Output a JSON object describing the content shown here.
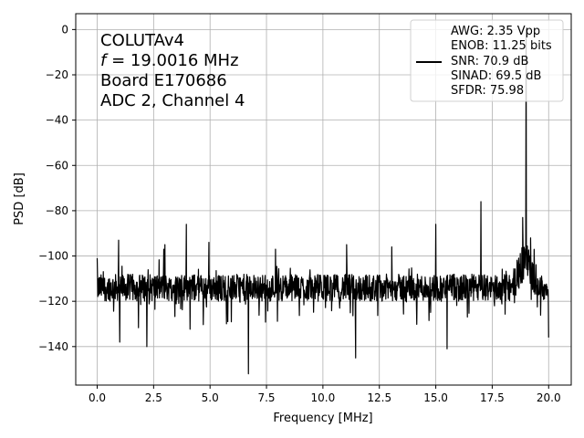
{
  "chart_data": {
    "type": "line",
    "xlabel": "Frequency [MHz]",
    "ylabel": "PSD [dB]",
    "xlim": [
      -0.95,
      21.0
    ],
    "ylim": [
      -157,
      7
    ],
    "xticks": [
      0.0,
      2.5,
      5.0,
      7.5,
      10.0,
      12.5,
      15.0,
      17.5,
      20.0
    ],
    "xtick_labels": [
      "0.0",
      "2.5",
      "5.0",
      "7.5",
      "10.0",
      "12.5",
      "15.0",
      "17.5",
      "20.0"
    ],
    "yticks": [
      0,
      -20,
      -40,
      -60,
      -80,
      -100,
      -120,
      -140
    ],
    "ytick_labels": [
      "0",
      "−20",
      "−40",
      "−60",
      "−80",
      "−100",
      "−120",
      "−140"
    ],
    "grid": true,
    "legend_position": "top-right",
    "annotation_lines": [
      "COLUTAv4",
      "f = 19.0016 MHz",
      "Board E170686",
      "ADC 2, Channel 4"
    ],
    "series": [
      {
        "name": "AWG: 2.35 Vpp\nENOB: 11.25 bits\nSNR: 70.9 dB\nSINAD: 69.5 dB\nSFDR: 75.98",
        "color": "#000000",
        "noise_floor_db": -114,
        "x_range": [
          0.0,
          20.0
        ],
        "peaks": [
          {
            "x": 0.0,
            "y": -101
          },
          {
            "x": 0.95,
            "y": -93
          },
          {
            "x": 2.95,
            "y": -97
          },
          {
            "x": 3.0,
            "y": -95
          },
          {
            "x": 3.95,
            "y": -86
          },
          {
            "x": 4.95,
            "y": -94
          },
          {
            "x": 7.9,
            "y": -97
          },
          {
            "x": 11.05,
            "y": -95
          },
          {
            "x": 13.05,
            "y": -96
          },
          {
            "x": 15.0,
            "y": -86
          },
          {
            "x": 17.0,
            "y": -76
          },
          {
            "x": 18.85,
            "y": -83
          },
          {
            "x": 19.0016,
            "y": 0
          },
          {
            "x": 19.2,
            "y": -92
          }
        ],
        "dips": [
          {
            "x": 1.0,
            "y": -138
          },
          {
            "x": 2.2,
            "y": -140
          },
          {
            "x": 6.7,
            "y": -152
          },
          {
            "x": 11.45,
            "y": -145
          },
          {
            "x": 15.5,
            "y": -141
          },
          {
            "x": 20.0,
            "y": -136
          }
        ]
      }
    ],
    "legend_lines": [
      "AWG: 2.35 Vpp",
      "ENOB: 11.25 bits",
      "SNR: 70.9 dB",
      "SINAD: 69.5 dB",
      "SFDR: 75.98"
    ]
  }
}
